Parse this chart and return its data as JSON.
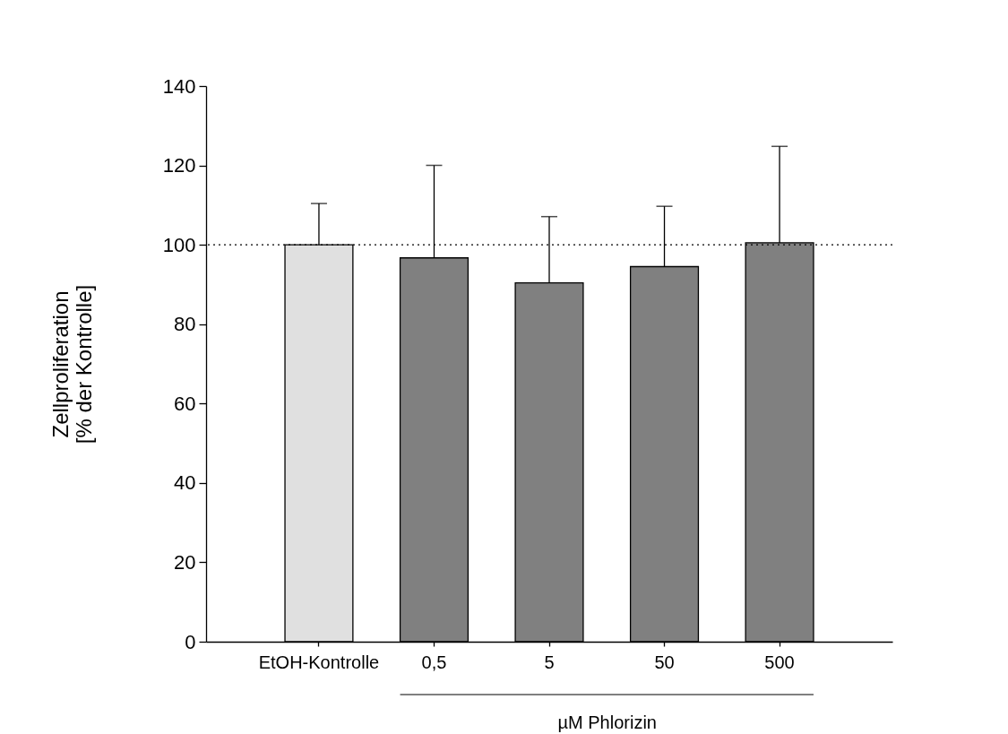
{
  "chart_data": {
    "type": "bar",
    "xlabel": "µM Phlorizin",
    "ylabel": "Zellproliferation\n[% der Kontrolle]",
    "categories": [
      "EtOH-Kontrolle",
      "0,5",
      "5",
      "50",
      "500"
    ],
    "values": [
      100,
      96.7,
      90.4,
      94.5,
      100.5
    ],
    "colors": [
      "#e0e0e0",
      "#808080",
      "#808080",
      "#808080",
      "#808080"
    ],
    "errors": [
      [
        100,
        110.4
      ],
      [
        96.7,
        120
      ],
      [
        90.4,
        107.1
      ],
      [
        94.5,
        109.7
      ],
      [
        100.5,
        124.8
      ]
    ],
    "ylim": [
      0,
      140
    ],
    "yticks": [
      0,
      20,
      40,
      60,
      80,
      100,
      120,
      140
    ],
    "ref_lines": [
      {
        "axis": "y",
        "value": 100,
        "line_style": "dotted",
        "color": "#000000"
      }
    ],
    "grid": false
  }
}
